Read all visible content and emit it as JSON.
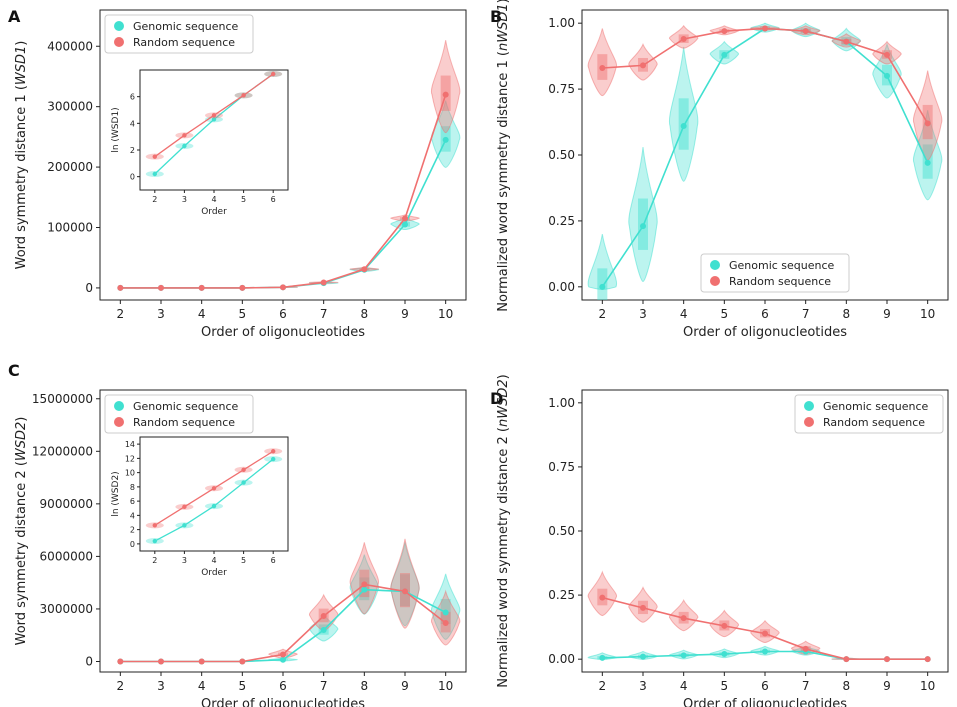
{
  "colors": {
    "genomic": "#40E0D0",
    "random": "#F07070",
    "axis": "#222222"
  },
  "chart_data": [
    {
      "id": "A",
      "panel_label": "A",
      "type": "line",
      "xlabel": "Order of oligonucleotides",
      "ylabel": "Word symmetry distance 1 (WSD1)",
      "ylabel_parts": [
        "Word symmetry distance 1 (",
        "WSD1",
        ")"
      ],
      "categories": [
        2,
        3,
        4,
        5,
        6,
        7,
        8,
        9,
        10
      ],
      "ylim": [
        -20000,
        460000
      ],
      "yticks": [
        0,
        100000,
        200000,
        300000,
        400000
      ],
      "ytick_labels": [
        "0",
        "100000",
        "200000",
        "300000",
        "400000"
      ],
      "legend": {
        "position": "top-left",
        "entries": [
          "Genomic sequence",
          "Random sequence"
        ]
      },
      "series": [
        {
          "name": "Genomic sequence",
          "values": [
            0,
            0,
            0,
            0,
            1000,
            8000,
            30000,
            105000,
            245000
          ],
          "violin_spread": [
            0,
            0,
            0,
            0,
            500,
            1500,
            4000,
            12000,
            65000
          ]
        },
        {
          "name": "Random sequence",
          "values": [
            0,
            0,
            0,
            0,
            1000,
            9000,
            31000,
            115000,
            320000
          ],
          "violin_spread": [
            0,
            0,
            0,
            0,
            500,
            1500,
            3000,
            6000,
            90000
          ]
        }
      ],
      "inset": {
        "xlabel": "Order",
        "ylabel": "ln (WSD1)",
        "categories": [
          2,
          3,
          4,
          5,
          6
        ],
        "ylim": [
          -1,
          8
        ],
        "yticks": [
          0,
          2,
          4,
          6
        ],
        "ytick_labels": [
          "0",
          "2",
          "4",
          "6"
        ],
        "series": [
          {
            "name": "Genomic sequence",
            "values": [
              0.2,
              2.3,
              4.3,
              6.1,
              7.7
            ]
          },
          {
            "name": "Random sequence",
            "values": [
              1.5,
              3.1,
              4.6,
              6.1,
              7.7
            ]
          }
        ]
      }
    },
    {
      "id": "B",
      "panel_label": "B",
      "type": "line",
      "xlabel": "Order of oligonucleotides",
      "ylabel": "Normalized word symmetry distance 1 (nWSD1)",
      "ylabel_parts": [
        "Normalized word symmetry distance 1 (",
        "nWSD1",
        ")"
      ],
      "categories": [
        2,
        3,
        4,
        5,
        6,
        7,
        8,
        9,
        10
      ],
      "ylim": [
        -0.05,
        1.05
      ],
      "yticks": [
        0,
        0.25,
        0.5,
        0.75,
        1
      ],
      "ytick_labels": [
        "0.00",
        "0.25",
        "0.50",
        "0.75",
        "1.00"
      ],
      "legend": {
        "position": "bottom-center",
        "entries": [
          "Genomic sequence",
          "Random sequence"
        ]
      },
      "series": [
        {
          "name": "Genomic sequence",
          "values": [
            0.0,
            0.23,
            0.61,
            0.88,
            0.98,
            0.97,
            0.93,
            0.8,
            0.47
          ],
          "violin_spread": [
            0.2,
            0.3,
            0.3,
            0.05,
            0.02,
            0.03,
            0.05,
            0.12,
            0.2
          ]
        },
        {
          "name": "Random sequence",
          "values": [
            0.83,
            0.84,
            0.94,
            0.97,
            0.98,
            0.97,
            0.93,
            0.88,
            0.62
          ],
          "violin_spread": [
            0.15,
            0.08,
            0.05,
            0.02,
            0.01,
            0.02,
            0.03,
            0.05,
            0.2
          ]
        }
      ]
    },
    {
      "id": "C",
      "panel_label": "C",
      "type": "line",
      "xlabel": "Order of oligonucleotides",
      "ylabel": "Word symmetry distance 2 (WSD2)",
      "ylabel_parts": [
        "Word symmetry distance 2 (",
        "WSD2",
        ")"
      ],
      "categories": [
        2,
        3,
        4,
        5,
        6,
        7,
        8,
        9,
        10
      ],
      "ylim": [
        -600000,
        15500000
      ],
      "yticks": [
        0,
        3000000,
        6000000,
        9000000,
        12000000,
        15000000
      ],
      "ytick_labels": [
        "0",
        "3000000",
        "6000000",
        "9000000",
        "12000000",
        "15000000"
      ],
      "legend": {
        "position": "top-left",
        "entries": [
          "Genomic sequence",
          "Random sequence"
        ]
      },
      "series": [
        {
          "name": "Genomic sequence",
          "values": [
            0,
            0,
            0,
            0,
            100000,
            1800000,
            4100000,
            4000000,
            2800000
          ],
          "violin_spread": [
            0,
            0,
            0,
            0,
            100000,
            900000,
            2000000,
            2800000,
            2200000
          ]
        },
        {
          "name": "Random sequence",
          "values": [
            0,
            0,
            0,
            0,
            400000,
            2600000,
            4400000,
            4000000,
            2200000
          ],
          "violin_spread": [
            0,
            0,
            0,
            0,
            300000,
            1200000,
            2400000,
            3000000,
            1800000
          ]
        }
      ],
      "inset": {
        "xlabel": "Order",
        "ylabel": "ln (WSD2)",
        "categories": [
          2,
          3,
          4,
          5,
          6
        ],
        "ylim": [
          -1,
          15
        ],
        "yticks": [
          0,
          2,
          4,
          6,
          8,
          10,
          12,
          14
        ],
        "ytick_labels": [
          "0",
          "2",
          "4",
          "6",
          "8",
          "10",
          "12",
          "14"
        ],
        "series": [
          {
            "name": "Genomic sequence",
            "values": [
              0.4,
              2.6,
              5.3,
              8.6,
              11.9
            ]
          },
          {
            "name": "Random sequence",
            "values": [
              2.6,
              5.2,
              7.8,
              10.4,
              13.0
            ]
          }
        ]
      }
    },
    {
      "id": "D",
      "panel_label": "D",
      "type": "line",
      "xlabel": "Order of oligonucleotides",
      "ylabel": "Normalized word symmetry distance 2 (nWSD2)",
      "ylabel_parts": [
        "Normalized word symmetry distance 2 (",
        "nWSD2",
        ")"
      ],
      "categories": [
        2,
        3,
        4,
        5,
        6,
        7,
        8,
        9,
        10
      ],
      "ylim": [
        -0.05,
        1.05
      ],
      "yticks": [
        0,
        0.25,
        0.5,
        0.75,
        1
      ],
      "ytick_labels": [
        "0.00",
        "0.25",
        "0.50",
        "0.75",
        "1.00"
      ],
      "legend": {
        "position": "top-right",
        "entries": [
          "Genomic sequence",
          "Random sequence"
        ]
      },
      "series": [
        {
          "name": "Genomic sequence",
          "values": [
            0.005,
            0.01,
            0.015,
            0.02,
            0.03,
            0.03,
            0.0,
            0.0,
            0.0
          ],
          "violin_spread": [
            0.02,
            0.02,
            0.02,
            0.02,
            0.02,
            0.02,
            0.005,
            0,
            0
          ]
        },
        {
          "name": "Random sequence",
          "values": [
            0.24,
            0.2,
            0.16,
            0.13,
            0.1,
            0.04,
            0.0,
            0.0,
            0.0
          ],
          "violin_spread": [
            0.1,
            0.08,
            0.07,
            0.06,
            0.05,
            0.03,
            0.005,
            0,
            0
          ]
        }
      ]
    }
  ]
}
